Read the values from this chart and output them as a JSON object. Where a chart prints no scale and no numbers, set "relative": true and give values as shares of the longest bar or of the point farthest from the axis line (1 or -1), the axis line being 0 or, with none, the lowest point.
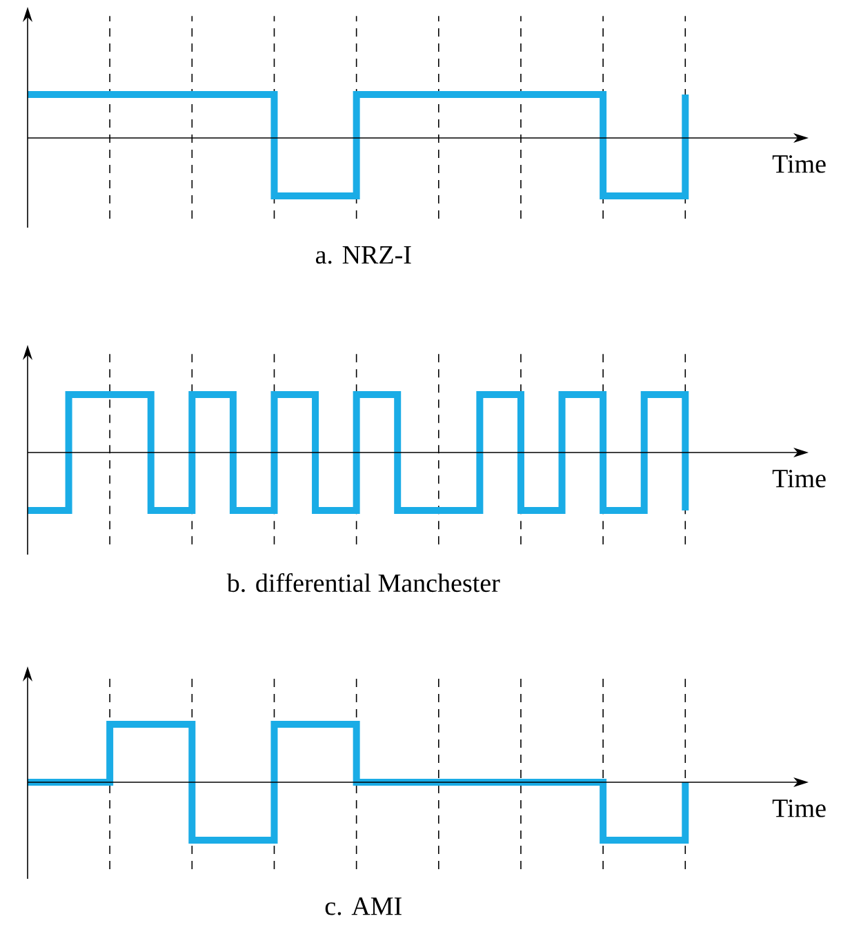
{
  "chart_data": [
    {
      "type": "step",
      "relative": true,
      "title": "a. NRZ-I",
      "xlabel": "Time",
      "grid": "x",
      "categories": [
        null,
        null,
        null,
        null,
        null,
        null,
        null,
        null,
        null,
        null,
        null,
        null,
        null,
        null,
        null,
        null,
        null
      ],
      "series": [
        {
          "color": "#1aace6",
          "values": [
            0.75,
            0.75,
            0.75,
            0.75,
            0.75,
            0.75,
            -1,
            -1,
            0.75,
            0.75,
            0.75,
            0.75,
            0.75,
            0.75,
            -1,
            -1,
            0.75
          ]
        }
      ]
    },
    {
      "type": "step",
      "relative": true,
      "title": "b. differential Manchester",
      "xlabel": "Time",
      "grid": "x",
      "categories": [
        null,
        null,
        null,
        null,
        null,
        null,
        null,
        null,
        null,
        null,
        null,
        null,
        null,
        null,
        null,
        null,
        null
      ],
      "series": [
        {
          "color": "#1aace6",
          "values": [
            -1,
            1,
            1,
            -1,
            1,
            -1,
            1,
            -1,
            1,
            -1,
            -1,
            1,
            -1,
            1,
            -1,
            1,
            -1
          ]
        }
      ]
    },
    {
      "type": "step",
      "relative": true,
      "title": "c. AMI",
      "xlabel": "Time",
      "grid": "x",
      "categories": [
        null,
        null,
        null,
        null,
        null,
        null,
        null,
        null,
        null,
        null,
        null,
        null,
        null,
        null,
        null,
        null,
        null
      ],
      "series": [
        {
          "color": "#1aace6",
          "values": [
            0,
            0,
            1,
            1,
            -1,
            -1,
            1,
            1,
            0,
            0,
            0,
            0,
            0,
            0,
            -1,
            -1,
            0
          ]
        }
      ]
    }
  ]
}
